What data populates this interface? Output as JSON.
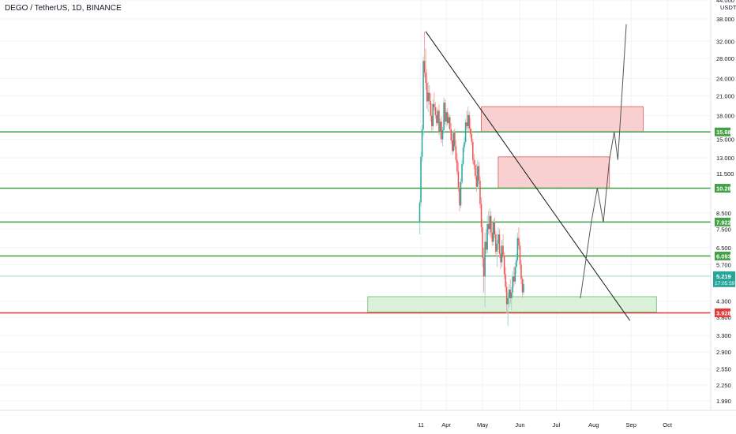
{
  "symbol_label": "DEGO / TetherUS, 1D, BINANCE",
  "chart_data": {
    "type": "candlestick",
    "y_scale": "log",
    "ylim": [
      1.85,
      44.0
    ],
    "currency_label": "USDT",
    "y_ticks": [
      {
        "value": 44.0,
        "label": "44.000"
      },
      {
        "value": 38.0,
        "label": "38.000"
      },
      {
        "value": 32.0,
        "label": "32.000"
      },
      {
        "value": 28.0,
        "label": "28.000"
      },
      {
        "value": 24.0,
        "label": "24.000"
      },
      {
        "value": 21.0,
        "label": "21.000"
      },
      {
        "value": 18.0,
        "label": "18.000"
      },
      {
        "value": 15.0,
        "label": "15.000"
      },
      {
        "value": 13.0,
        "label": "13.000"
      },
      {
        "value": 11.5,
        "label": "11.500"
      },
      {
        "value": 8.5,
        "label": "8.500"
      },
      {
        "value": 7.5,
        "label": "7.500"
      },
      {
        "value": 6.5,
        "label": "6.500"
      },
      {
        "value": 5.7,
        "label": "5.700"
      },
      {
        "value": 4.3,
        "label": "4.300"
      },
      {
        "value": 3.8,
        "label": "3.800"
      },
      {
        "value": 3.3,
        "label": "3.300"
      },
      {
        "value": 2.9,
        "label": "2.900"
      },
      {
        "value": 2.55,
        "label": "2.550"
      },
      {
        "value": 2.25,
        "label": "2.250"
      },
      {
        "value": 1.99,
        "label": "1.990"
      }
    ],
    "x_ticks": [
      {
        "day": 0,
        "label": "11"
      },
      {
        "day": 21,
        "label": "Apr"
      },
      {
        "day": 51,
        "label": "May"
      },
      {
        "day": 82,
        "label": "Jun"
      },
      {
        "day": 112,
        "label": "Jul"
      },
      {
        "day": 143,
        "label": "Aug"
      },
      {
        "day": 174,
        "label": "Sep"
      },
      {
        "day": 204,
        "label": "Oct"
      }
    ],
    "current_price": {
      "value": 5.219,
      "label": "5.219",
      "countdown": "17:05:59",
      "color": "#26a69a"
    },
    "horizontal_levels": [
      {
        "value": 15.884,
        "label": "15.884",
        "color": "#43a047"
      },
      {
        "value": 10.282,
        "label": "10.282",
        "color": "#43a047"
      },
      {
        "value": 7.922,
        "label": "7.922",
        "color": "#43a047"
      },
      {
        "value": 6.093,
        "label": "6.093",
        "color": "#43a047"
      },
      {
        "value": 3.928,
        "label": "3.928",
        "color": "#e53935"
      }
    ],
    "zones": [
      {
        "x0": 50,
        "x1": 184,
        "y0": 15.9,
        "y1": 19.3,
        "kind": "resistance",
        "fill": "#f8c8c8",
        "stroke": "#e57373"
      },
      {
        "x0": 64,
        "x1": 156,
        "y0": 10.3,
        "y1": 13.1,
        "kind": "resistance",
        "fill": "#f8c8c8",
        "stroke": "#e57373"
      },
      {
        "x0": -44,
        "x1": 195,
        "y0": 3.95,
        "y1": 4.45,
        "kind": "support",
        "fill": "#d6efd3",
        "stroke": "#81c784"
      }
    ],
    "trendline": {
      "x0": 4,
      "y0": 34.5,
      "x1": 173,
      "y1": 3.7,
      "color": "#131722"
    },
    "projection": [
      {
        "x": 132,
        "y": 4.4
      },
      {
        "x": 141,
        "y": 7.9
      },
      {
        "x": 146,
        "y": 10.3
      },
      {
        "x": 151,
        "y": 7.9
      },
      {
        "x": 156,
        "y": 12.8
      },
      {
        "x": 160,
        "y": 15.9
      },
      {
        "x": 163,
        "y": 12.8
      },
      {
        "x": 170,
        "y": 36.5
      }
    ],
    "candles": [
      [
        -1,
        7.9,
        9.4,
        7.2,
        9.2
      ],
      [
        0,
        9.2,
        13.6,
        8.9,
        13.1
      ],
      [
        1,
        13.1,
        16.8,
        12.6,
        16.2
      ],
      [
        2,
        16.2,
        28.5,
        15.4,
        27.5
      ],
      [
        3,
        27.5,
        34.5,
        24.2,
        25.1
      ],
      [
        4,
        25.1,
        30.2,
        22.0,
        23.2
      ],
      [
        5,
        23.2,
        25.8,
        19.0,
        20.1
      ],
      [
        6,
        20.1,
        23.4,
        18.5,
        21.5
      ],
      [
        7,
        21.5,
        22.8,
        19.6,
        20.2
      ],
      [
        8,
        20.2,
        21.4,
        17.2,
        18.0
      ],
      [
        9,
        18.0,
        19.8,
        16.0,
        16.6
      ],
      [
        10,
        16.6,
        20.4,
        16.1,
        19.7
      ],
      [
        11,
        19.7,
        21.5,
        18.8,
        19.2
      ],
      [
        12,
        19.2,
        20.0,
        17.6,
        18.1
      ],
      [
        13,
        18.1,
        19.3,
        16.6,
        17.0
      ],
      [
        14,
        17.0,
        19.0,
        16.7,
        18.7
      ],
      [
        15,
        18.7,
        19.6,
        15.5,
        15.9
      ],
      [
        16,
        15.9,
        17.6,
        15.1,
        17.2
      ],
      [
        17,
        17.2,
        17.9,
        14.6,
        15.0
      ],
      [
        18,
        15.0,
        16.5,
        14.2,
        16.1
      ],
      [
        19,
        16.1,
        20.7,
        15.7,
        19.9
      ],
      [
        20,
        19.9,
        20.4,
        16.8,
        17.2
      ],
      [
        21,
        17.2,
        18.9,
        16.5,
        18.5
      ],
      [
        22,
        18.5,
        19.1,
        16.7,
        17.0
      ],
      [
        23,
        17.0,
        18.3,
        16.3,
        17.8
      ],
      [
        24,
        17.8,
        18.1,
        15.9,
        16.2
      ],
      [
        25,
        16.2,
        17.0,
        14.5,
        14.9
      ],
      [
        26,
        14.9,
        15.7,
        13.3,
        13.7
      ],
      [
        27,
        13.7,
        16.1,
        13.5,
        15.8
      ],
      [
        28,
        15.8,
        16.3,
        13.8,
        14.2
      ],
      [
        29,
        14.2,
        14.9,
        12.5,
        12.8
      ],
      [
        30,
        12.8,
        13.5,
        11.4,
        11.7
      ],
      [
        31,
        11.7,
        12.6,
        10.0,
        10.3
      ],
      [
        32,
        10.3,
        10.8,
        8.6,
        9.0
      ],
      [
        33,
        9.0,
        11.1,
        8.8,
        10.8
      ],
      [
        34,
        10.8,
        12.8,
        10.6,
        12.4
      ],
      [
        35,
        12.4,
        14.4,
        12.2,
        14.1
      ],
      [
        36,
        14.1,
        15.3,
        13.6,
        14.7
      ],
      [
        37,
        14.7,
        17.6,
        14.4,
        17.1
      ],
      [
        38,
        17.1,
        18.7,
        16.2,
        16.6
      ],
      [
        39,
        16.6,
        19.3,
        16.0,
        18.1
      ],
      [
        40,
        18.1,
        18.6,
        15.9,
        16.3
      ],
      [
        41,
        16.3,
        17.7,
        15.2,
        15.6
      ],
      [
        42,
        15.6,
        16.3,
        14.3,
        14.7
      ],
      [
        43,
        14.7,
        15.1,
        12.4,
        12.8
      ],
      [
        44,
        12.8,
        13.4,
        11.9,
        12.3
      ],
      [
        45,
        12.3,
        12.8,
        11.0,
        11.3
      ],
      [
        46,
        11.3,
        12.4,
        10.0,
        10.4
      ],
      [
        47,
        10.4,
        12.8,
        10.2,
        12.2
      ],
      [
        48,
        12.2,
        12.6,
        10.6,
        10.9
      ],
      [
        49,
        10.9,
        11.3,
        8.8,
        9.1
      ],
      [
        50,
        9.1,
        9.6,
        7.3,
        7.6
      ],
      [
        51,
        7.6,
        8.1,
        5.6,
        6.0
      ],
      [
        52,
        6.0,
        6.5,
        4.6,
        5.2
      ],
      [
        53,
        5.2,
        7.3,
        4.1,
        6.8
      ],
      [
        54,
        6.8,
        7.5,
        6.2,
        6.4
      ],
      [
        55,
        6.4,
        8.3,
        6.2,
        7.8
      ],
      [
        56,
        7.8,
        8.6,
        7.2,
        7.5
      ],
      [
        57,
        7.5,
        8.8,
        7.1,
        8.3
      ],
      [
        58,
        8.3,
        8.6,
        7.0,
        7.3
      ],
      [
        59,
        7.3,
        7.9,
        6.6,
        6.8
      ],
      [
        60,
        6.8,
        8.1,
        6.6,
        7.9
      ],
      [
        61,
        7.9,
        8.2,
        7.0,
        7.2
      ],
      [
        62,
        7.2,
        7.4,
        6.1,
        6.3
      ],
      [
        63,
        6.3,
        6.9,
        5.6,
        6.7
      ],
      [
        64,
        6.7,
        7.6,
        6.4,
        7.2
      ],
      [
        65,
        7.2,
        7.5,
        6.0,
        6.2
      ],
      [
        66,
        6.2,
        6.6,
        5.5,
        5.8
      ],
      [
        67,
        5.8,
        6.9,
        5.6,
        6.6
      ],
      [
        68,
        6.6,
        7.2,
        6.0,
        6.1
      ],
      [
        69,
        6.1,
        6.3,
        5.1,
        5.3
      ],
      [
        70,
        5.3,
        5.6,
        4.6,
        4.8
      ],
      [
        71,
        4.8,
        5.0,
        3.9,
        4.2
      ],
      [
        72,
        4.2,
        4.6,
        3.55,
        4.4
      ],
      [
        73,
        4.4,
        4.9,
        4.1,
        4.7
      ],
      [
        74,
        4.7,
        5.1,
        4.2,
        4.4
      ],
      [
        75,
        4.4,
        4.8,
        4.0,
        4.6
      ],
      [
        76,
        4.6,
        5.4,
        4.4,
        5.2
      ],
      [
        77,
        5.2,
        5.6,
        4.8,
        5.0
      ],
      [
        78,
        5.0,
        5.8,
        4.9,
        5.6
      ],
      [
        79,
        5.6,
        6.2,
        5.3,
        5.9
      ],
      [
        80,
        5.9,
        7.3,
        5.8,
        7.0
      ],
      [
        81,
        7.0,
        7.6,
        6.4,
        6.6
      ],
      [
        82,
        6.6,
        6.8,
        5.5,
        5.7
      ],
      [
        83,
        5.7,
        5.9,
        4.9,
        5.1
      ],
      [
        84,
        5.1,
        5.2,
        4.4,
        4.6
      ],
      [
        85,
        4.6,
        5.1,
        4.5,
        4.9
      ]
    ]
  }
}
